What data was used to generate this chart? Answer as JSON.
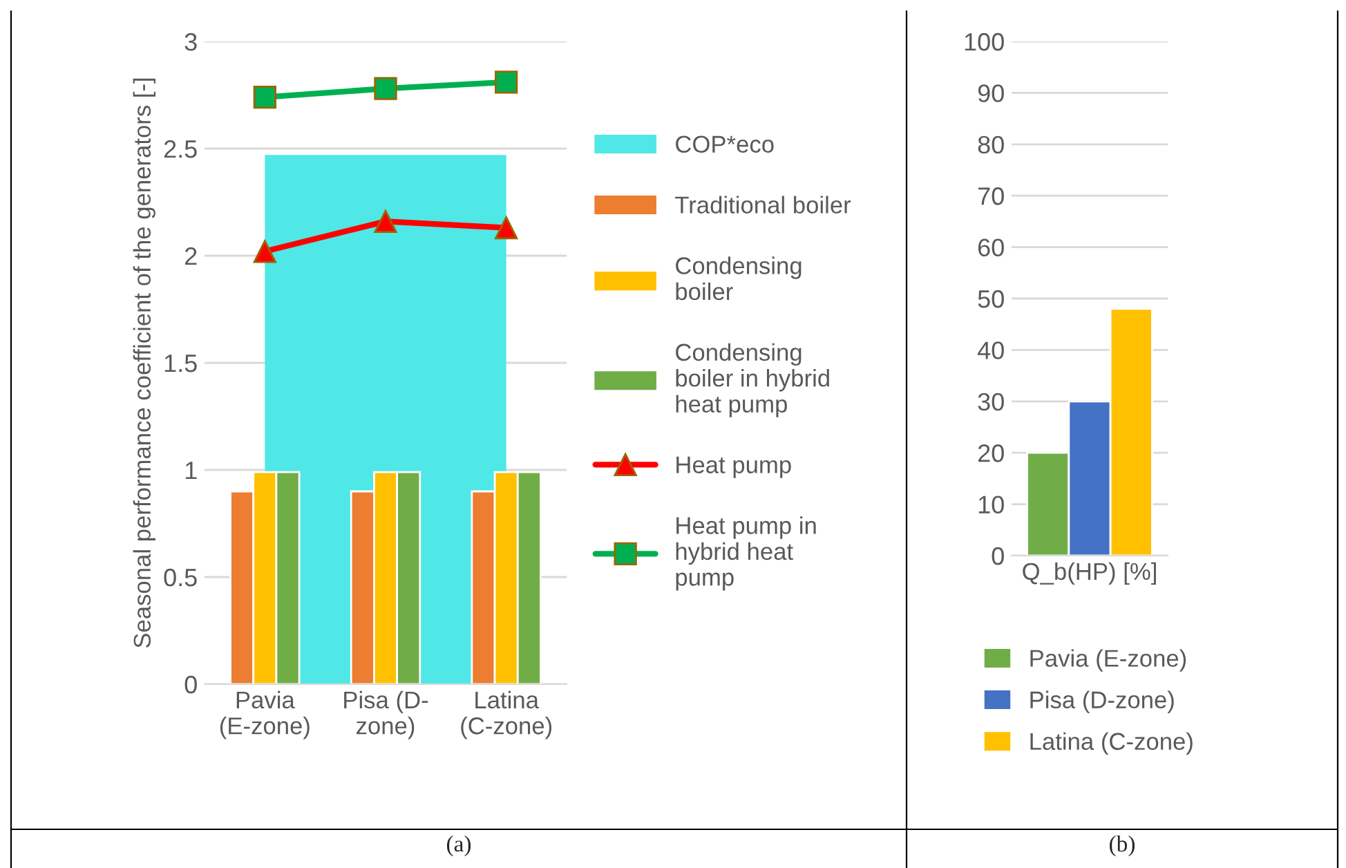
{
  "chart_data": [
    {
      "type": "bar",
      "categories": [
        "Pavia\n(E-zone)",
        "Pisa (D-\nzone)",
        "Latina\n(C-zone)"
      ],
      "ylabel": "Seasonal performance coefficient of the generators [-]",
      "ylim": [
        0,
        3
      ],
      "yticks": [
        0,
        {
          "value": 0.5,
          "label": "0.5"
        },
        1,
        {
          "value": 1.5,
          "label": "1.5"
        },
        2,
        {
          "value": 2.5,
          "label": "2.5"
        },
        3
      ],
      "grid": "y",
      "legend": "right",
      "annotations": [
        "(a)"
      ],
      "series": [
        {
          "name": "COP*eco",
          "type": "area",
          "color": "#4fe8e6",
          "values": [
            2.47,
            2.47,
            2.47
          ]
        },
        {
          "name": "Traditional boiler",
          "color": "#ed7d31",
          "values": [
            0.9,
            0.9,
            0.9
          ]
        },
        {
          "name": "Condensing\nboiler",
          "color": "#ffc000",
          "values": [
            0.99,
            0.99,
            0.99
          ]
        },
        {
          "name": "Condensing\nboiler in hybrid\nheat pump",
          "color": "#70ad47",
          "values": [
            0.99,
            0.99,
            0.99
          ]
        },
        {
          "name": "Heat pump",
          "type": "line",
          "marker": "triangle",
          "color": "#ff0000",
          "values": [
            2.02,
            2.16,
            2.13
          ]
        },
        {
          "name": "Heat pump in\nhybrid heat\npump",
          "type": "line",
          "marker": "square",
          "color": "#00b050",
          "values": [
            2.74,
            2.78,
            2.81
          ]
        }
      ]
    },
    {
      "type": "bar",
      "categories": [
        "Q_b(HP) [%]"
      ],
      "ylim": [
        0,
        100
      ],
      "yticks": [
        0,
        10,
        20,
        30,
        40,
        50,
        60,
        70,
        80,
        90,
        100
      ],
      "grid": "y",
      "legend": "bottom",
      "annotations": [
        "(b)"
      ],
      "series": [
        {
          "name": "Pavia (E-zone)",
          "color": "#70ad47",
          "values": [
            20
          ]
        },
        {
          "name": "Pisa (D-zone)",
          "color": "#4472c4",
          "values": [
            30
          ]
        },
        {
          "name": "Latina (C-zone)",
          "color": "#ffc000",
          "values": [
            48
          ]
        }
      ]
    }
  ]
}
